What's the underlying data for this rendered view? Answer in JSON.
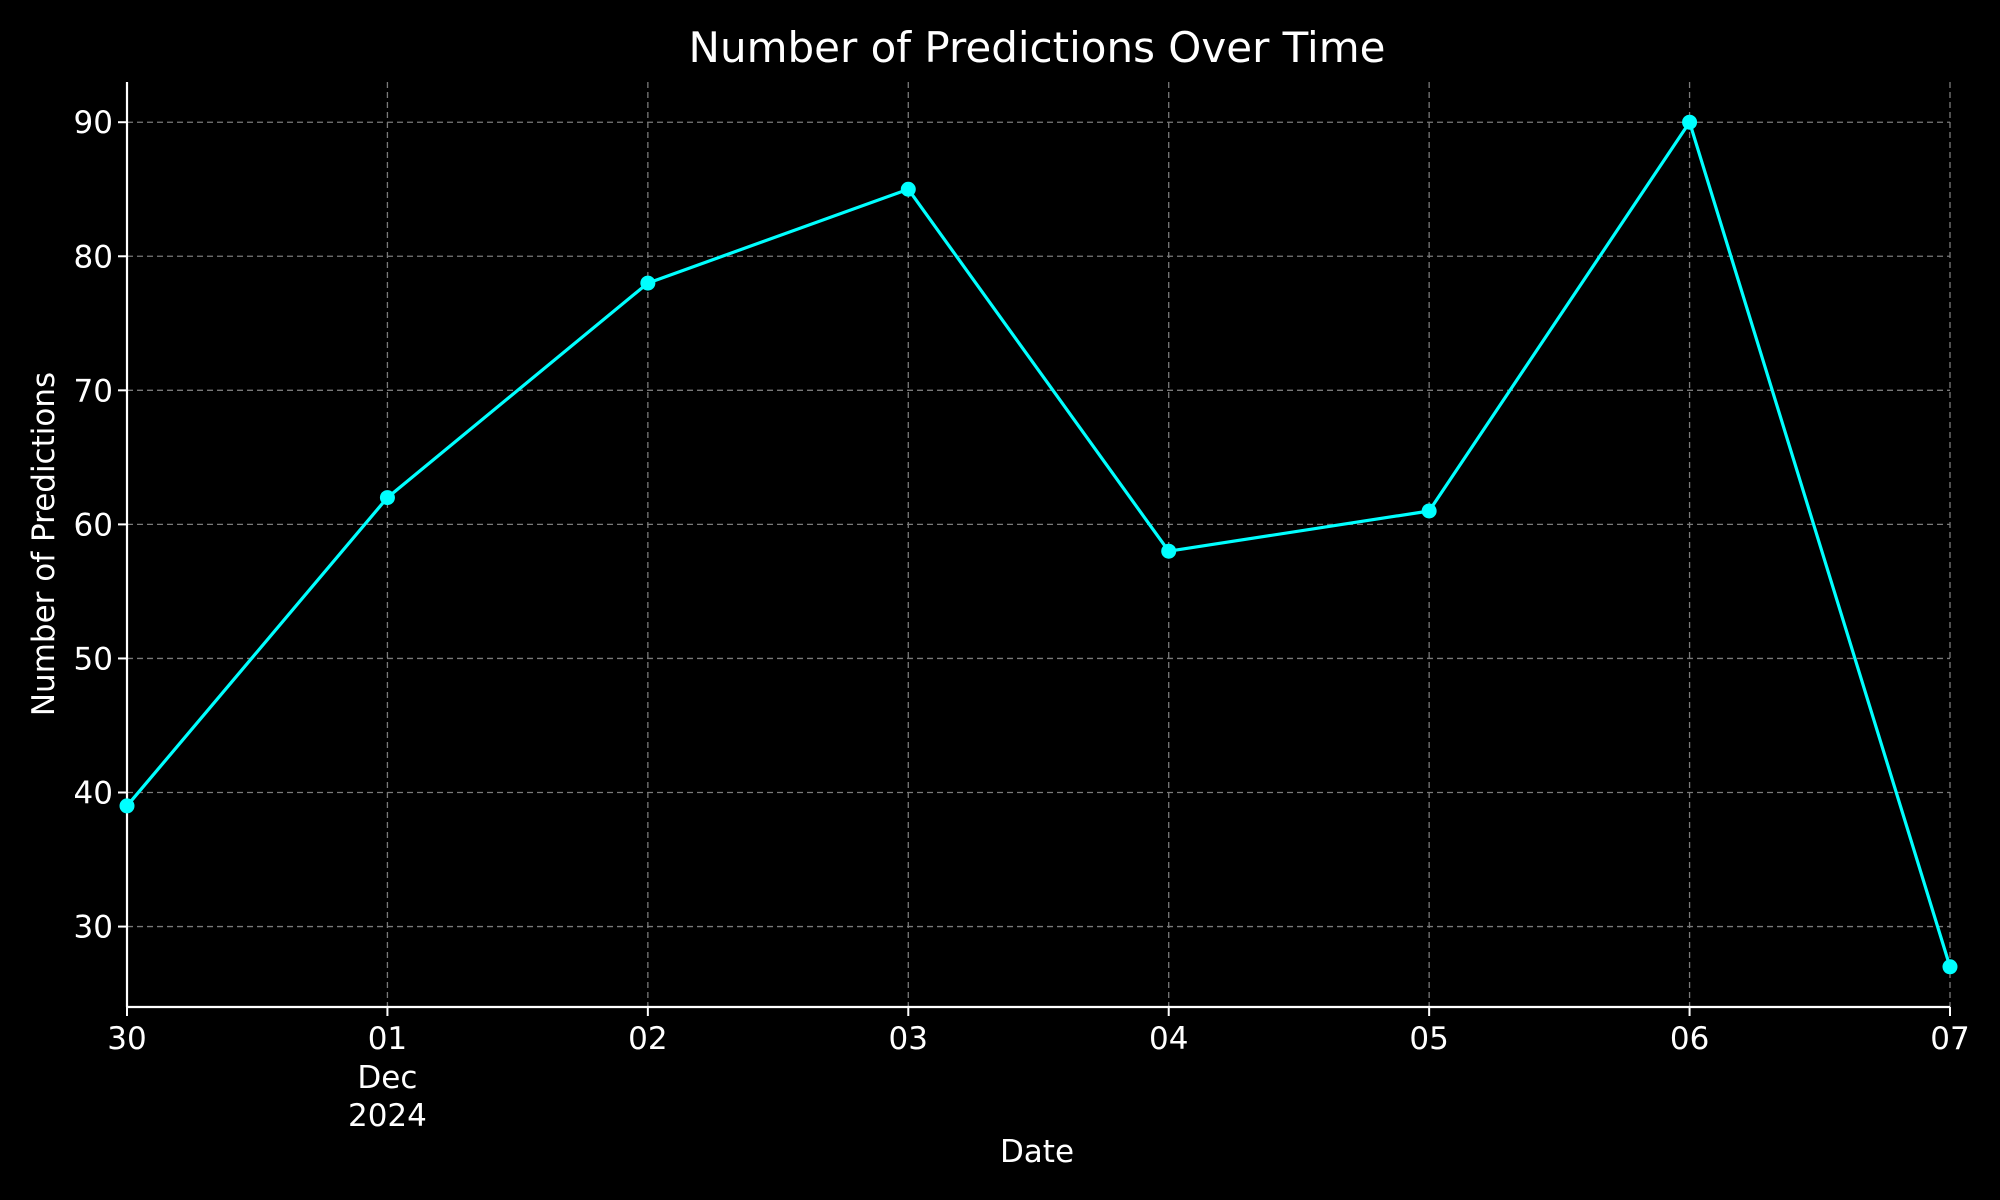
{
  "chart_data": {
    "type": "line",
    "title": "Number of Predictions Over Time",
    "xlabel": "Date",
    "ylabel": "Number of Predictions",
    "x": [
      "2024-11-30",
      "2024-12-01",
      "2024-12-02",
      "2024-12-03",
      "2024-12-04",
      "2024-12-05",
      "2024-12-06",
      "2024-12-07"
    ],
    "x_tick_labels": [
      "30",
      "01",
      "02",
      "03",
      "04",
      "05",
      "06",
      "07"
    ],
    "x_tick_sublabels": [
      "",
      "Dec\n2024",
      "",
      "",
      "",
      "",
      "",
      ""
    ],
    "series": [
      {
        "values": [
          39,
          62,
          78,
          85,
          58,
          61,
          90,
          27
        ],
        "color": "#00ffff",
        "marker": "circle"
      }
    ],
    "ylim": [
      24,
      93
    ],
    "y_ticks": [
      30,
      40,
      50,
      60,
      70,
      80,
      90
    ],
    "grid": true,
    "background": "#000000",
    "text_color": "#ffffff"
  }
}
